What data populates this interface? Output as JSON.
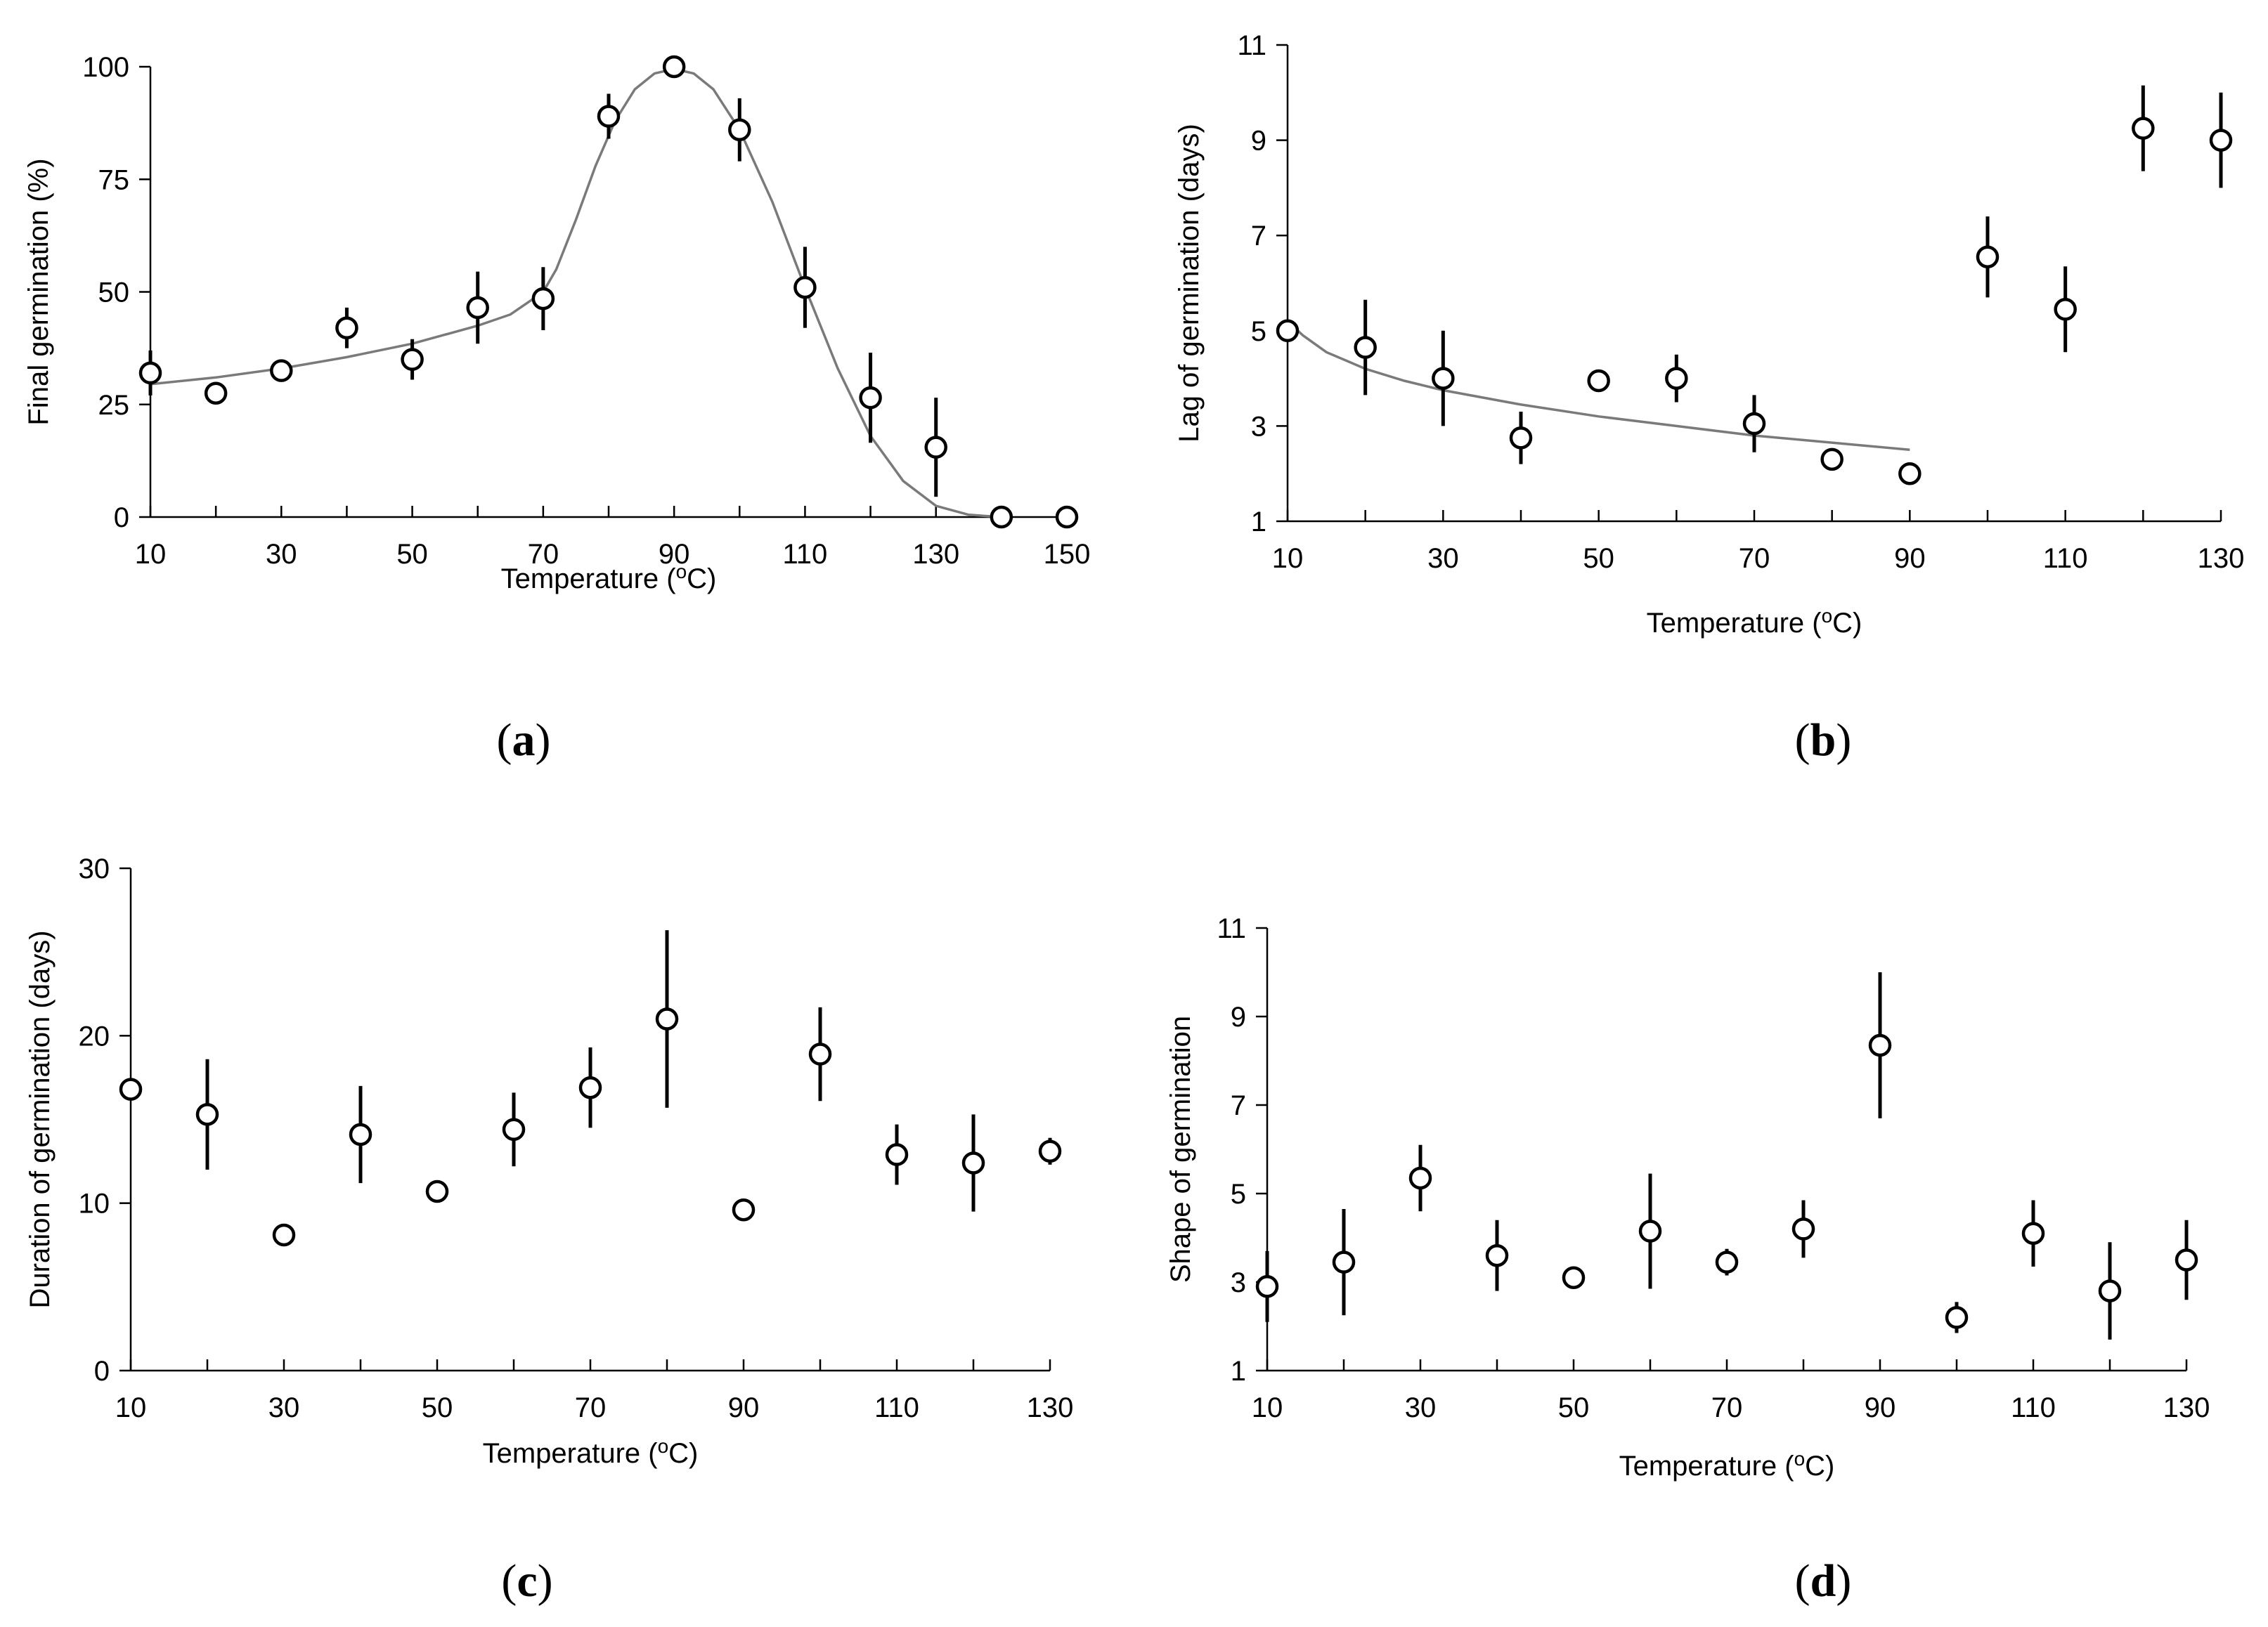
{
  "chart_data": [
    {
      "id": "a",
      "type": "scatter",
      "panel_label": "a",
      "xlabel": "Temperature (",
      "xlabel_sup": "o",
      "xlabel_end": "C)",
      "ylabel": "Final germination (%)",
      "xlim": [
        10,
        150
      ],
      "ylim": [
        0,
        100
      ],
      "xticks": [
        10,
        30,
        50,
        70,
        90,
        110,
        130,
        150
      ],
      "yticks": [
        0,
        25,
        50,
        75,
        100
      ],
      "points": [
        {
          "x": 10,
          "y": 32,
          "err": 5
        },
        {
          "x": 20,
          "y": 27.5,
          "err": 0
        },
        {
          "x": 30,
          "y": 32.5,
          "err": 0
        },
        {
          "x": 40,
          "y": 42,
          "err": 4.5
        },
        {
          "x": 50,
          "y": 35,
          "err": 4.5
        },
        {
          "x": 60,
          "y": 46.5,
          "err": 8
        },
        {
          "x": 70,
          "y": 48.5,
          "err": 7
        },
        {
          "x": 80,
          "y": 89,
          "err": 5
        },
        {
          "x": 90,
          "y": 100,
          "err": 0
        },
        {
          "x": 100,
          "y": 86,
          "err": 7
        },
        {
          "x": 110,
          "y": 51,
          "err": 9
        },
        {
          "x": 120,
          "y": 26.5,
          "err": 10
        },
        {
          "x": 130,
          "y": 15.5,
          "err": 11
        },
        {
          "x": 140,
          "y": 0,
          "err": 0
        },
        {
          "x": 150,
          "y": 0,
          "err": 0
        }
      ],
      "fit_curve": [
        [
          10,
          29.5
        ],
        [
          20,
          31
        ],
        [
          30,
          33
        ],
        [
          40,
          35.5
        ],
        [
          50,
          38.5
        ],
        [
          60,
          42.5
        ],
        [
          65,
          45
        ],
        [
          70,
          50
        ],
        [
          72,
          55
        ],
        [
          75,
          66
        ],
        [
          78,
          78
        ],
        [
          81,
          88
        ],
        [
          84,
          95
        ],
        [
          87,
          98.5
        ],
        [
          90,
          99.5
        ],
        [
          93,
          98.5
        ],
        [
          96,
          95
        ],
        [
          100,
          86
        ],
        [
          105,
          70
        ],
        [
          110,
          51
        ],
        [
          115,
          33
        ],
        [
          120,
          18
        ],
        [
          125,
          8
        ],
        [
          130,
          2.5
        ],
        [
          135,
          0.5
        ],
        [
          140,
          0
        ]
      ]
    },
    {
      "id": "b",
      "type": "scatter",
      "panel_label": "b",
      "xlabel": "Temperature (",
      "xlabel_sup": "o",
      "xlabel_end": "C)",
      "ylabel": "Lag of germination (days)",
      "xlim": [
        10,
        130
      ],
      "ylim": [
        1,
        11
      ],
      "xticks": [
        10,
        30,
        50,
        70,
        90,
        110,
        130
      ],
      "yticks": [
        1,
        3,
        5,
        7,
        9,
        11
      ],
      "points": [
        {
          "x": 10,
          "y": 5,
          "err": 0
        },
        {
          "x": 20,
          "y": 4.65,
          "err": 1
        },
        {
          "x": 30,
          "y": 4.0,
          "err": 1
        },
        {
          "x": 40,
          "y": 2.75,
          "err": 0.55
        },
        {
          "x": 50,
          "y": 3.95,
          "err": 0
        },
        {
          "x": 60,
          "y": 4.0,
          "err": 0.5
        },
        {
          "x": 70,
          "y": 3.05,
          "err": 0.6
        },
        {
          "x": 80,
          "y": 2.3,
          "err": 0
        },
        {
          "x": 90,
          "y": 2.0,
          "err": 0
        },
        {
          "x": 100,
          "y": 6.55,
          "err": 0.85
        },
        {
          "x": 110,
          "y": 5.45,
          "err": 0.9
        },
        {
          "x": 120,
          "y": 9.25,
          "err": 0.9
        },
        {
          "x": 130,
          "y": 9.0,
          "err": 1
        }
      ],
      "fit_curve": [
        [
          10,
          5.2
        ],
        [
          12,
          4.9
        ],
        [
          15,
          4.55
        ],
        [
          20,
          4.2
        ],
        [
          25,
          3.95
        ],
        [
          30,
          3.75
        ],
        [
          40,
          3.45
        ],
        [
          50,
          3.2
        ],
        [
          60,
          3.0
        ],
        [
          70,
          2.8
        ],
        [
          80,
          2.65
        ],
        [
          90,
          2.5
        ]
      ]
    },
    {
      "id": "c",
      "type": "scatter",
      "panel_label": "c",
      "xlabel": "Temperature (",
      "xlabel_sup": "o",
      "xlabel_end": "C)",
      "ylabel": "Duration of germination (days)",
      "xlim": [
        10,
        130
      ],
      "ylim": [
        0,
        30
      ],
      "xticks": [
        10,
        30,
        50,
        70,
        90,
        110,
        130
      ],
      "yticks": [
        0,
        10,
        20,
        30
      ],
      "points": [
        {
          "x": 10,
          "y": 16.8,
          "err": 0
        },
        {
          "x": 20,
          "y": 15.3,
          "err": 3.3
        },
        {
          "x": 30,
          "y": 8.1,
          "err": 0
        },
        {
          "x": 40,
          "y": 14.1,
          "err": 2.9
        },
        {
          "x": 50,
          "y": 10.7,
          "err": 0
        },
        {
          "x": 60,
          "y": 14.4,
          "err": 2.2
        },
        {
          "x": 70,
          "y": 16.9,
          "err": 2.4
        },
        {
          "x": 80,
          "y": 21,
          "err": 5.3
        },
        {
          "x": 90,
          "y": 9.6,
          "err": 0
        },
        {
          "x": 100,
          "y": 18.9,
          "err": 2.8
        },
        {
          "x": 110,
          "y": 12.9,
          "err": 1.8
        },
        {
          "x": 120,
          "y": 12.4,
          "err": 2.9
        },
        {
          "x": 130,
          "y": 13.1,
          "err": 0.8
        }
      ]
    },
    {
      "id": "d",
      "type": "scatter",
      "panel_label": "d",
      "xlabel": "Temperature (",
      "xlabel_sup": "o",
      "xlabel_end": "C)",
      "ylabel": "Shape of germination",
      "xlim": [
        10,
        130
      ],
      "ylim": [
        1,
        11
      ],
      "xticks": [
        10,
        30,
        50,
        70,
        90,
        110,
        130
      ],
      "yticks": [
        1,
        3,
        5,
        7,
        9,
        11
      ],
      "points": [
        {
          "x": 10,
          "y": 2.9,
          "err": 0.8
        },
        {
          "x": 20,
          "y": 3.45,
          "err": 1.2
        },
        {
          "x": 30,
          "y": 5.35,
          "err": 0.75
        },
        {
          "x": 40,
          "y": 3.6,
          "err": 0.8
        },
        {
          "x": 50,
          "y": 3.1,
          "err": 0
        },
        {
          "x": 60,
          "y": 4.15,
          "err": 1.3
        },
        {
          "x": 70,
          "y": 3.45,
          "err": 0.3
        },
        {
          "x": 80,
          "y": 4.2,
          "err": 0.65
        },
        {
          "x": 90,
          "y": 8.35,
          "err": 1.65
        },
        {
          "x": 100,
          "y": 2.2,
          "err": 0.35
        },
        {
          "x": 110,
          "y": 4.1,
          "err": 0.75
        },
        {
          "x": 120,
          "y": 2.8,
          "err": 1.1
        },
        {
          "x": 130,
          "y": 3.5,
          "err": 0.9
        }
      ]
    }
  ]
}
